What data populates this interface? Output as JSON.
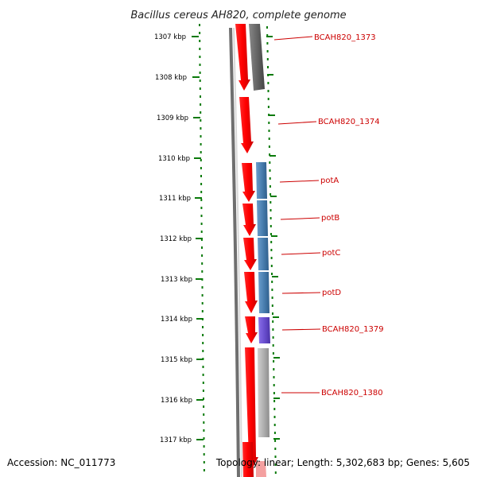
{
  "title": "Bacillus cereus AH820, complete genome",
  "accession": "Accession: NC_011773",
  "topology": "Topology: linear; Length: 5,302,683 bp; Genes: 5,605",
  "kbp_ticks": [
    "1307 kbp",
    "1308 kbp",
    "1309 kbp",
    "1310 kbp",
    "1311 kbp",
    "1312 kbp",
    "1313 kbp",
    "1314 kbp",
    "1315 kbp",
    "1316 kbp",
    "1317 kbp"
  ],
  "genes": [
    {
      "name": "BCAH820_1373",
      "color": "#666666"
    },
    {
      "name": "BCAH820_1374",
      "color": "#ff0000"
    },
    {
      "name": "potA",
      "color": "#4a7fb0"
    },
    {
      "name": "potB",
      "color": "#4a7fb0"
    },
    {
      "name": "potC",
      "color": "#4a7fb0"
    },
    {
      "name": "potD",
      "color": "#4a7fb0"
    },
    {
      "name": "BCAH820_1379",
      "color": "#6a4fcf"
    },
    {
      "name": "BCAH820_1380",
      "color": "#b0b0b0"
    }
  ],
  "colors": {
    "forward_strand": "#ff0000",
    "label_line": "#cc0000",
    "tick": "#0a7a0a",
    "backbone": "#555555"
  }
}
